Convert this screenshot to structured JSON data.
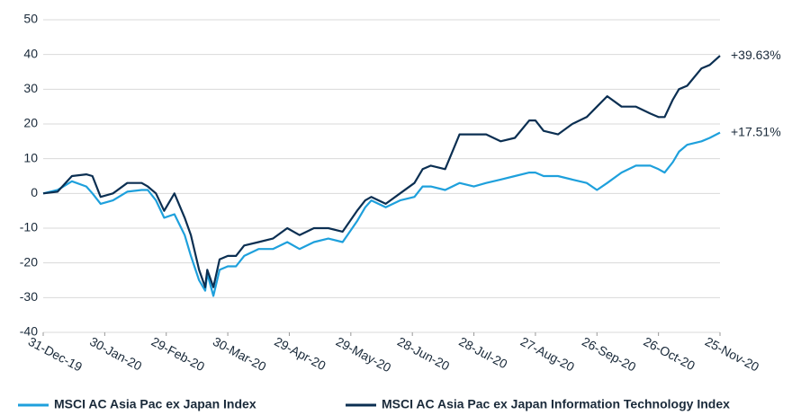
{
  "chart_data": {
    "type": "line",
    "x": [
      "31-Dec-19",
      "7-Jan-20",
      "14-Jan-20",
      "21-Jan-20",
      "24-Jan-20",
      "28-Jan-20",
      "3-Feb-20",
      "10-Feb-20",
      "17-Feb-20",
      "20-Feb-20",
      "24-Feb-20",
      "28-Feb-20",
      "4-Mar-20",
      "9-Mar-20",
      "12-Mar-20",
      "16-Mar-20",
      "19-Mar-20",
      "20-Mar-20",
      "23-Mar-20",
      "26-Mar-20",
      "30-Mar-20",
      "3-Apr-20",
      "7-Apr-20",
      "14-Apr-20",
      "21-Apr-20",
      "28-Apr-20",
      "4-May-20",
      "11-May-20",
      "18-May-20",
      "25-May-20",
      "1-Jun-20",
      "5-Jun-20",
      "8-Jun-20",
      "15-Jun-20",
      "22-Jun-20",
      "29-Jun-20",
      "3-Jul-20",
      "7-Jul-20",
      "14-Jul-20",
      "21-Jul-20",
      "28-Jul-20",
      "3-Aug-20",
      "10-Aug-20",
      "17-Aug-20",
      "24-Aug-20",
      "27-Aug-20",
      "31-Aug-20",
      "7-Sep-20",
      "14-Sep-20",
      "21-Sep-20",
      "26-Sep-20",
      "1-Oct-20",
      "8-Oct-20",
      "15-Oct-20",
      "22-Oct-20",
      "26-Oct-20",
      "29-Oct-20",
      "2-Nov-20",
      "5-Nov-20",
      "9-Nov-20",
      "16-Nov-20",
      "20-Nov-20",
      "25-Nov-20"
    ],
    "series": [
      {
        "name": "MSCI AC Asia Pac ex Japan Index",
        "color": "#1ea0dc",
        "values": [
          0,
          1,
          3.5,
          2,
          0,
          -3,
          -2,
          0.5,
          1,
          1,
          -2,
          -7,
          -6,
          -12,
          -18,
          -25,
          -28,
          -23,
          -29.5,
          -22,
          -21,
          -21,
          -18,
          -16,
          -16,
          -14,
          -16,
          -14,
          -13,
          -14,
          -8,
          -4,
          -2,
          -4,
          -2,
          -1,
          2,
          2,
          1,
          3,
          2,
          3,
          4,
          5,
          6,
          6,
          5,
          5,
          4,
          3,
          1,
          3,
          6,
          8,
          8,
          7,
          6,
          9,
          12,
          14,
          15,
          16,
          17.51
        ]
      },
      {
        "name": "MSCI AC Asia Pac ex Japan Information Technology Index",
        "color": "#0b2f52",
        "values": [
          0,
          0.5,
          5,
          5.5,
          5,
          -1,
          0,
          3,
          3,
          2,
          0,
          -5,
          0,
          -7,
          -12,
          -22,
          -27,
          -22,
          -27,
          -19,
          -18,
          -18,
          -15,
          -14,
          -13,
          -10,
          -12,
          -10,
          -10,
          -11,
          -5,
          -2,
          -1,
          -3,
          0,
          3,
          7,
          8,
          7,
          17,
          17,
          17,
          15,
          16,
          21,
          21,
          18,
          17,
          20,
          22,
          25,
          28,
          25,
          25,
          23,
          22,
          22,
          27,
          30,
          31,
          36,
          37,
          39.63
        ]
      }
    ],
    "annotations": [
      "+17.51%",
      "+39.63%"
    ],
    "ylim": [
      -40,
      50
    ],
    "yticks": [
      -40,
      -30,
      -20,
      -10,
      0,
      10,
      20,
      30,
      40,
      50
    ],
    "xticks": [
      "31-Dec-19",
      "30-Jan-20",
      "29-Feb-20",
      "30-Mar-20",
      "29-Apr-20",
      "29-May-20",
      "28-Jun-20",
      "28-Jul-20",
      "27-Aug-20",
      "26-Sep-20",
      "26-Oct-20",
      "25-Nov-20"
    ],
    "grid": true
  }
}
